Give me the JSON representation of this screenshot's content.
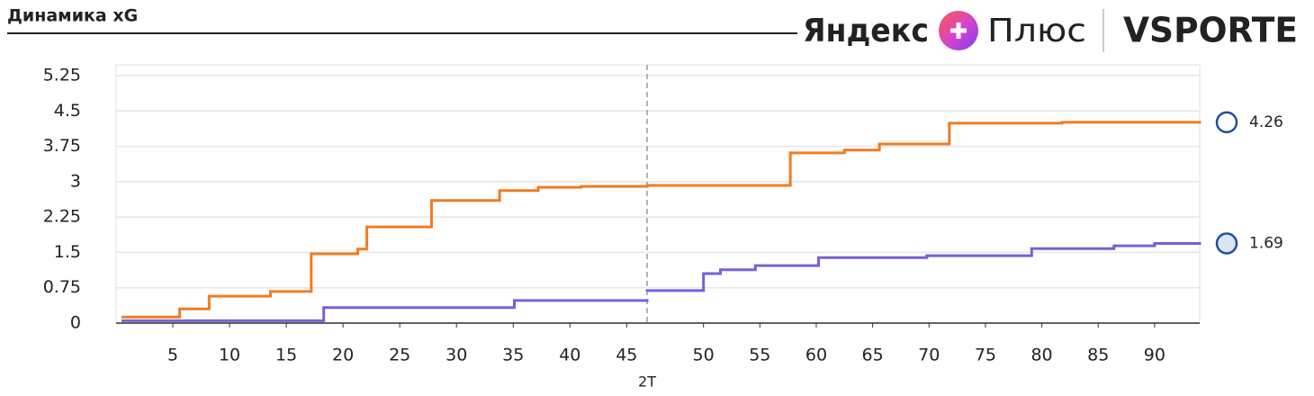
{
  "chart_data": {
    "type": "step",
    "title": "Динамика xG",
    "brand": {
      "yandex": "Яндекс",
      "plus": "Плюс",
      "sport": "VSPORTE"
    },
    "ylim": [
      0,
      5.25
    ],
    "yticks": [
      0,
      0.75,
      1.5,
      2.25,
      3,
      3.75,
      4.5,
      5.25
    ],
    "grid": true,
    "halves": [
      {
        "xlim": [
          0,
          46.8
        ],
        "xticks": [
          5,
          10,
          15,
          20,
          25,
          30,
          35,
          40,
          45
        ]
      },
      {
        "xlim": [
          45,
          94
        ],
        "xticks": [
          50,
          55,
          60,
          65,
          70,
          75,
          80,
          85,
          90
        ],
        "label": "2T"
      }
    ],
    "series": [
      {
        "color": "#f07c22",
        "end_label": 4.26,
        "halves": [
          {
            "x": [
              0.6,
              5.6,
              8.2,
              13.6,
              17.2,
              21.3,
              22.1,
              27.8,
              33.8,
              37.2,
              41
            ],
            "values": [
              0.13,
              0.3,
              0.57,
              0.67,
              1.47,
              1.57,
              2.04,
              2.6,
              2.81,
              2.88,
              2.9
            ]
          },
          {
            "x": [
              45,
              57.7,
              62.5,
              65.6,
              71.8,
              81.8
            ],
            "values": [
              2.92,
              3.61,
              3.67,
              3.8,
              4.24,
              4.26
            ]
          }
        ]
      },
      {
        "color": "#7b5fd6",
        "end_label": 1.69,
        "halves": [
          {
            "x": [
              0.6,
              18.3,
              35.1
            ],
            "values": [
              0.05,
              0.33,
              0.48
            ]
          },
          {
            "x": [
              45,
              50,
              51.5,
              54.6,
              60.2,
              69.8,
              79.1,
              86.4,
              90
            ],
            "values": [
              0.69,
              1.05,
              1.13,
              1.22,
              1.39,
              1.43,
              1.58,
              1.64,
              1.69
            ]
          }
        ]
      }
    ]
  }
}
